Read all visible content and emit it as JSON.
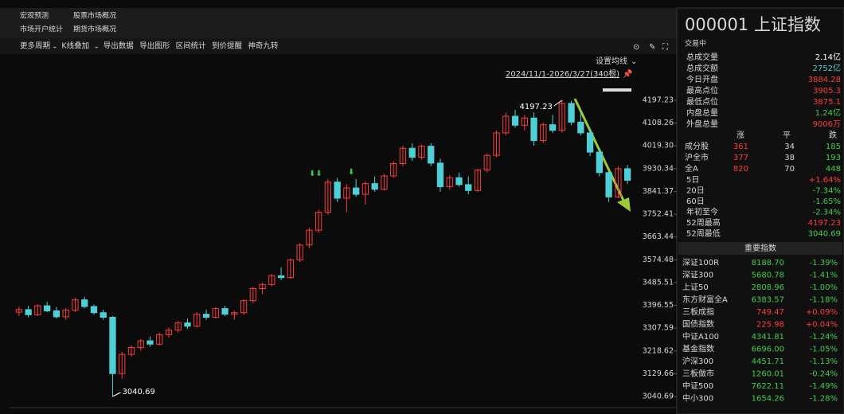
{
  "tabs": [
    [
      "宏观预测",
      "股票市场概况"
    ],
    [
      "市场开户统计",
      "期货市场概况"
    ]
  ],
  "toolbar": [
    "更多周期",
    "K线叠加",
    "导出数据",
    "导出图形",
    "区间统计",
    "到价提醒",
    "神奇九转"
  ],
  "ma_setting": "设置均线",
  "range": "2024/11/1-2026/3/27(340根)",
  "chart": {
    "type": "candlestick",
    "up_color": "#ff3b3b",
    "down_color": "#4fd0d6",
    "ylim": [
      3040.69,
      4197.23
    ],
    "yticks": [
      4197.23,
      4108.26,
      {
        "value": 4019.3,
        "label": "4019.30"
      },
      3930.34,
      3841.37,
      3752.41,
      3663.44,
      3574.48,
      3485.51,
      3396.55,
      3307.59,
      3218.62,
      3129.66,
      3040.69
    ],
    "high": 4197.23,
    "low": 3040.69,
    "candles": [
      [
        3370,
        3392,
        3355,
        3380
      ],
      [
        3380,
        3395,
        3350,
        3360
      ],
      [
        3360,
        3400,
        3355,
        3395
      ],
      [
        3395,
        3410,
        3370,
        3375
      ],
      [
        3375,
        3390,
        3345,
        3352
      ],
      [
        3352,
        3385,
        3340,
        3378
      ],
      [
        3378,
        3425,
        3370,
        3418
      ],
      [
        3418,
        3430,
        3385,
        3392
      ],
      [
        3392,
        3400,
        3360,
        3368
      ],
      [
        3368,
        3380,
        3340,
        3350
      ],
      [
        3350,
        3355,
        3040.69,
        3130
      ],
      [
        3130,
        3215,
        3110,
        3205
      ],
      [
        3205,
        3240,
        3195,
        3232
      ],
      [
        3232,
        3265,
        3220,
        3258
      ],
      [
        3258,
        3275,
        3235,
        3245
      ],
      [
        3245,
        3290,
        3240,
        3282
      ],
      [
        3282,
        3310,
        3270,
        3300
      ],
      [
        3300,
        3335,
        3290,
        3328
      ],
      [
        3328,
        3345,
        3305,
        3315
      ],
      [
        3315,
        3370,
        3310,
        3362
      ],
      [
        3362,
        3380,
        3340,
        3350
      ],
      [
        3350,
        3390,
        3345,
        3384
      ],
      [
        3384,
        3395,
        3355,
        3362
      ],
      [
        3362,
        3375,
        3340,
        3368
      ],
      [
        3368,
        3420,
        3360,
        3415
      ],
      [
        3415,
        3470,
        3405,
        3462
      ],
      [
        3462,
        3485,
        3440,
        3478
      ],
      [
        3478,
        3520,
        3470,
        3512
      ],
      [
        3512,
        3545,
        3495,
        3505
      ],
      [
        3505,
        3580,
        3500,
        3574
      ],
      [
        3574,
        3640,
        3565,
        3632
      ],
      [
        3632,
        3700,
        3620,
        3690
      ],
      [
        3690,
        3770,
        3680,
        3760
      ],
      [
        3760,
        3890,
        3750,
        3878
      ],
      [
        3878,
        3895,
        3800,
        3815
      ],
      [
        3815,
        3870,
        3760,
        3855
      ],
      [
        3855,
        3890,
        3820,
        3830
      ],
      [
        3830,
        3880,
        3790,
        3872
      ],
      [
        3872,
        3900,
        3840,
        3850
      ],
      [
        3850,
        3910,
        3845,
        3902
      ],
      [
        3902,
        3960,
        3895,
        3950
      ],
      [
        3950,
        4020,
        3940,
        4010
      ],
      [
        4010,
        4030,
        3960,
        3975
      ],
      [
        3975,
        4025,
        3965,
        4018
      ],
      [
        4018,
        4030,
        3940,
        3952
      ],
      [
        3952,
        3970,
        3840,
        3860
      ],
      [
        3860,
        3905,
        3850,
        3895
      ],
      [
        3895,
        3915,
        3860,
        3868
      ],
      [
        3868,
        3900,
        3830,
        3845
      ],
      [
        3845,
        3930,
        3840,
        3925
      ],
      [
        3925,
        3990,
        3915,
        3982
      ],
      [
        3982,
        4080,
        3975,
        4070
      ],
      [
        4070,
        4150,
        4060,
        4135
      ],
      [
        4135,
        4160,
        4090,
        4100
      ],
      [
        4100,
        4140,
        4080,
        4128
      ],
      [
        4128,
        4150,
        4020,
        4040
      ],
      [
        4040,
        4110,
        4030,
        4102
      ],
      [
        4102,
        4140,
        4070,
        4080
      ],
      [
        4080,
        4197.23,
        4070,
        4185
      ],
      [
        4185,
        4195,
        4100,
        4112
      ],
      [
        4112,
        4150,
        4060,
        4070
      ],
      [
        4070,
        4085,
        3980,
        3995
      ],
      [
        3995,
        4010,
        3900,
        3915
      ],
      [
        3915,
        3920,
        3800,
        3820
      ],
      [
        3820,
        3940,
        3815,
        3930
      ],
      [
        3930,
        3945,
        3870,
        3885
      ]
    ]
  },
  "quote": {
    "code": "000001 上证指数",
    "status": "交易中",
    "stats": [
      {
        "label": "总成交量",
        "value": "2.14亿",
        "color": "#ffffff"
      },
      {
        "label": "总成交额",
        "value": "2752亿",
        "color": "#4fd0d6"
      },
      {
        "label": "今日开盘",
        "value": "3884.28",
        "color": "#ff3b3b"
      },
      {
        "label": "最高点位",
        "value": "3905.3",
        "color": "#ff3b3b"
      },
      {
        "label": "最低点位",
        "value": "3875.1",
        "color": "#ff3b3b"
      },
      {
        "label": "内盘总量",
        "value": "1.24亿",
        "color": "#3ecf4a"
      },
      {
        "label": "外盘总量",
        "value": "9006万",
        "color": "#ff3b3b"
      }
    ],
    "breadth_headers": [
      "涨",
      "平",
      "跌"
    ],
    "breadth": [
      [
        "成分股",
        361,
        34,
        185
      ],
      [
        "沪全市",
        377,
        38,
        193
      ],
      [
        "全A",
        820,
        70,
        448
      ]
    ],
    "returns": [
      {
        "label": "5日",
        "value": "+1.64%"
      },
      {
        "label": "20日",
        "value": "-7.34%"
      },
      {
        "label": "60日",
        "value": "-1.65%"
      },
      {
        "label": "年初至今",
        "value": "-2.34%"
      },
      {
        "label": "52周最高",
        "value": "4197.23",
        "color": "#ff3b3b"
      },
      {
        "label": "52周最低",
        "value": "3040.69",
        "color": "#3ecf4a"
      }
    ],
    "index_title": "重要指数",
    "indices": [
      [
        "深证100R",
        "8188.70",
        "-1.39%"
      ],
      [
        "深证300",
        "5680.78",
        "-1.41%"
      ],
      [
        "上证50",
        "2808.96",
        "-1.00%"
      ],
      [
        "东方财富全A",
        "6383.57",
        "-1.18%"
      ],
      [
        "三板成指",
        "749.47",
        "+0.09%"
      ],
      [
        "国债指数",
        "225.98",
        "+0.04%"
      ],
      [
        "中证A100",
        "4341.81",
        "-1.24%"
      ],
      [
        "基金指数",
        "6696.00",
        "-1.05%"
      ],
      [
        "沪深300",
        "4451.71",
        "-1.13%"
      ],
      [
        "三板做市",
        "1260.01",
        "-0.24%"
      ],
      [
        "中证500",
        "7622.11",
        "-1.49%"
      ],
      [
        "中小300",
        "1654.26",
        "-1.28%"
      ]
    ]
  }
}
